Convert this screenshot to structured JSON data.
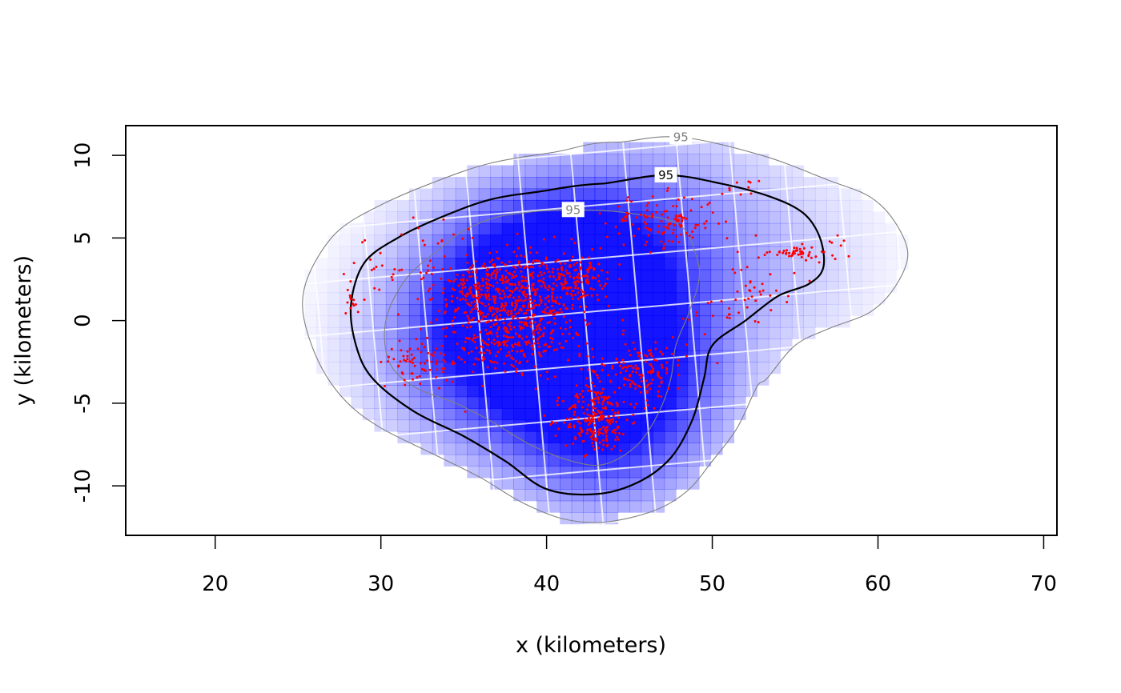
{
  "chart_data": {
    "type": "scatter",
    "title": "",
    "xlabel": "x (kilometers)",
    "ylabel": "y (kilometers)",
    "xlim": [
      14.6,
      70.8
    ],
    "ylim": [
      -13.0,
      11.8
    ],
    "xticks": [
      "20",
      "30",
      "40",
      "50",
      "60",
      "70"
    ],
    "yticks": [
      "-10",
      "-5",
      "0",
      "5",
      "10"
    ],
    "grid": false,
    "legend": "none",
    "colors": {
      "density": "#0000ff",
      "points": "#ff0000",
      "contour_estimate": "#000000",
      "contour_ci": "#808080",
      "frame": "#000000"
    },
    "density_background": {
      "type": "heatmap",
      "color": "blue",
      "hotspots": [
        {
          "x": 38.5,
          "y": 1.0,
          "intensity": 1.0
        },
        {
          "x": 42.0,
          "y": 2.5,
          "intensity": 0.75
        },
        {
          "x": 43.0,
          "y": -5.5,
          "intensity": 0.7
        },
        {
          "x": 45.0,
          "y": -3.0,
          "intensity": 0.6
        },
        {
          "x": 34.5,
          "y": -2.0,
          "intensity": 0.4
        },
        {
          "x": 47.0,
          "y": 6.0,
          "intensity": 0.35
        },
        {
          "x": 54.0,
          "y": 3.5,
          "intensity": 0.2
        }
      ]
    },
    "contours": [
      {
        "name": "95",
        "role": "upper",
        "label": "95",
        "label_at": {
          "x": 48.1,
          "y": 11.1
        },
        "points": [
          [
            48.1,
            11.1
          ],
          [
            53.0,
            10.0
          ],
          [
            57.0,
            8.5
          ],
          [
            59.5,
            7.5
          ],
          [
            61.0,
            6.0
          ],
          [
            61.8,
            4.0
          ],
          [
            61.0,
            2.0
          ],
          [
            59.5,
            0.5
          ],
          [
            57.0,
            -0.5
          ],
          [
            55.0,
            -1.5
          ],
          [
            53.3,
            -3.5
          ],
          [
            52.7,
            -4.0
          ],
          [
            51.5,
            -6.5
          ],
          [
            50.0,
            -8.5
          ],
          [
            48.5,
            -10.3
          ],
          [
            46.5,
            -11.5
          ],
          [
            43.5,
            -12.2
          ],
          [
            41.0,
            -12.0
          ],
          [
            38.5,
            -11.0
          ],
          [
            36.0,
            -9.5
          ],
          [
            33.0,
            -8.0
          ],
          [
            30.0,
            -6.5
          ],
          [
            28.0,
            -5.0
          ],
          [
            26.5,
            -3.0
          ],
          [
            25.5,
            -0.5
          ],
          [
            25.3,
            1.5
          ],
          [
            26.0,
            3.5
          ],
          [
            27.5,
            5.5
          ],
          [
            30.0,
            7.0
          ],
          [
            33.0,
            8.3
          ],
          [
            36.5,
            9.5
          ],
          [
            40.5,
            10.2
          ],
          [
            44.5,
            10.8
          ],
          [
            48.1,
            11.1
          ]
        ]
      },
      {
        "name": "95",
        "role": "estimate",
        "label": "95",
        "label_at": {
          "x": 47.2,
          "y": 8.8
        },
        "points": [
          [
            47.2,
            8.8
          ],
          [
            50.5,
            8.3
          ],
          [
            53.5,
            7.5
          ],
          [
            55.5,
            6.5
          ],
          [
            56.5,
            5.0
          ],
          [
            56.7,
            3.2
          ],
          [
            55.8,
            2.2
          ],
          [
            54.0,
            1.5
          ],
          [
            52.0,
            0.0
          ],
          [
            50.0,
            -1.5
          ],
          [
            49.5,
            -3.5
          ],
          [
            48.8,
            -6.0
          ],
          [
            47.5,
            -8.3
          ],
          [
            45.5,
            -9.8
          ],
          [
            43.0,
            -10.5
          ],
          [
            40.0,
            -10.2
          ],
          [
            37.5,
            -8.5
          ],
          [
            35.0,
            -7.0
          ],
          [
            32.0,
            -5.5
          ],
          [
            29.5,
            -3.5
          ],
          [
            28.5,
            -1.5
          ],
          [
            28.2,
            1.0
          ],
          [
            29.0,
            3.5
          ],
          [
            31.0,
            5.0
          ],
          [
            33.5,
            6.2
          ],
          [
            36.5,
            7.3
          ],
          [
            39.5,
            7.8
          ],
          [
            43.5,
            8.3
          ],
          [
            47.2,
            8.8
          ]
        ]
      },
      {
        "name": "95",
        "role": "lower",
        "label": "95",
        "label_at": {
          "x": 41.6,
          "y": 6.7
        },
        "points": [
          [
            41.6,
            6.7
          ],
          [
            45.0,
            6.5
          ],
          [
            48.0,
            5.8
          ],
          [
            49.0,
            4.0
          ],
          [
            49.2,
            2.5
          ],
          [
            48.6,
            0.5
          ],
          [
            47.8,
            -1.5
          ],
          [
            47.5,
            -3.5
          ],
          [
            46.8,
            -5.5
          ],
          [
            45.5,
            -7.5
          ],
          [
            43.5,
            -8.7
          ],
          [
            41.5,
            -8.5
          ],
          [
            39.0,
            -7.5
          ],
          [
            36.5,
            -6.0
          ],
          [
            34.5,
            -5.0
          ],
          [
            32.0,
            -4.0
          ],
          [
            30.5,
            -2.5
          ],
          [
            30.3,
            0.0
          ],
          [
            31.5,
            2.5
          ],
          [
            33.5,
            4.3
          ],
          [
            35.5,
            5.7
          ],
          [
            38.5,
            6.5
          ],
          [
            41.6,
            6.7
          ]
        ]
      }
    ],
    "grid_overlay": {
      "origin": {
        "x": 42.3,
        "y": 0.5
      },
      "spacing": 3.2,
      "angle_deg": 5,
      "count": 6,
      "color": "#ffffff"
    },
    "point_clusters": [
      {
        "x": 38.5,
        "y": 1.2,
        "sx": 2.2,
        "sy": 1.6,
        "n": 520
      },
      {
        "x": 42.0,
        "y": 2.6,
        "sx": 0.8,
        "sy": 0.6,
        "n": 90
      },
      {
        "x": 36.0,
        "y": 2.0,
        "sx": 1.5,
        "sy": 0.8,
        "n": 120
      },
      {
        "x": 37.5,
        "y": -1.5,
        "sx": 2.0,
        "sy": 1.0,
        "n": 160
      },
      {
        "x": 43.0,
        "y": -6.0,
        "sx": 1.0,
        "sy": 1.0,
        "n": 220
      },
      {
        "x": 45.5,
        "y": -3.0,
        "sx": 1.5,
        "sy": 1.0,
        "n": 160
      },
      {
        "x": 32.5,
        "y": -2.5,
        "sx": 1.3,
        "sy": 0.6,
        "n": 70
      },
      {
        "x": 47.0,
        "y": 6.0,
        "sx": 1.7,
        "sy": 0.8,
        "n": 120
      },
      {
        "x": 55.0,
        "y": 4.1,
        "sx": 0.7,
        "sy": 0.2,
        "n": 45
      },
      {
        "x": 53.0,
        "y": 2.5,
        "sx": 1.0,
        "sy": 1.2,
        "n": 30
      },
      {
        "x": 50.5,
        "y": 0.5,
        "sx": 1.5,
        "sy": 1.0,
        "n": 20
      },
      {
        "x": 30.0,
        "y": 2.5,
        "sx": 1.3,
        "sy": 1.5,
        "n": 25
      },
      {
        "x": 34.5,
        "y": 5.0,
        "sx": 1.5,
        "sy": 0.8,
        "n": 15
      },
      {
        "x": 28.2,
        "y": 1.1,
        "sx": 0.2,
        "sy": 0.3,
        "n": 10
      },
      {
        "x": 57.5,
        "y": 4.5,
        "sx": 0.4,
        "sy": 0.5,
        "n": 8
      },
      {
        "x": 51.5,
        "y": 7.9,
        "sx": 0.8,
        "sy": 0.3,
        "n": 10
      }
    ]
  }
}
